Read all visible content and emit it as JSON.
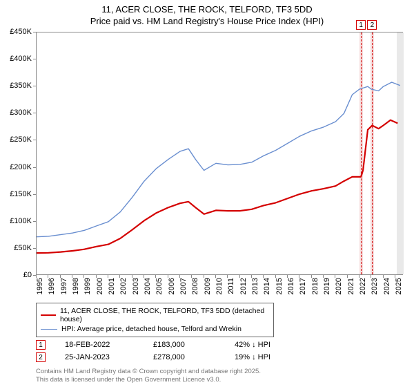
{
  "title_line1": "11, ACER CLOSE, THE ROCK, TELFORD, TF3 5DD",
  "title_line2": "Price paid vs. HM Land Registry's House Price Index (HPI)",
  "chart": {
    "type": "line",
    "background_color": "#ffffff",
    "border_color": "#888888",
    "x": {
      "min": 1995,
      "max": 2025.7,
      "ticks": [
        1995,
        1996,
        1997,
        1998,
        1999,
        2000,
        2001,
        2002,
        2003,
        2004,
        2005,
        2006,
        2007,
        2008,
        2009,
        2010,
        2011,
        2012,
        2013,
        2014,
        2015,
        2016,
        2017,
        2018,
        2019,
        2020,
        2021,
        2022,
        2023,
        2024,
        2025
      ]
    },
    "y": {
      "min": 0,
      "max": 450000,
      "ticks": [
        0,
        50000,
        100000,
        150000,
        200000,
        250000,
        300000,
        350000,
        400000,
        450000
      ],
      "tick_labels": [
        "£0",
        "£50K",
        "£100K",
        "£150K",
        "£200K",
        "£250K",
        "£300K",
        "£350K",
        "£400K",
        "£450K"
      ]
    },
    "title_fontsize": 13,
    "axis_label_fontsize": 11,
    "series": [
      {
        "name": "hpi",
        "label": "HPI: Average price, detached house, Telford and Wrekin",
        "color": "#6a8fd0",
        "line_width": 1.4,
        "points": [
          [
            1995,
            72000
          ],
          [
            1996,
            73000
          ],
          [
            1997,
            76000
          ],
          [
            1998,
            79000
          ],
          [
            1999,
            84000
          ],
          [
            2000,
            92000
          ],
          [
            2001,
            100000
          ],
          [
            2002,
            118000
          ],
          [
            2003,
            145000
          ],
          [
            2004,
            175000
          ],
          [
            2005,
            198000
          ],
          [
            2006,
            215000
          ],
          [
            2007,
            230000
          ],
          [
            2007.7,
            235000
          ],
          [
            2008.3,
            215000
          ],
          [
            2009,
            195000
          ],
          [
            2010,
            208000
          ],
          [
            2011,
            205000
          ],
          [
            2012,
            206000
          ],
          [
            2013,
            210000
          ],
          [
            2014,
            222000
          ],
          [
            2015,
            232000
          ],
          [
            2016,
            245000
          ],
          [
            2017,
            258000
          ],
          [
            2018,
            268000
          ],
          [
            2019,
            275000
          ],
          [
            2020,
            285000
          ],
          [
            2020.7,
            300000
          ],
          [
            2021.4,
            335000
          ],
          [
            2022,
            345000
          ],
          [
            2022.7,
            350000
          ],
          [
            2023,
            345000
          ],
          [
            2023.6,
            342000
          ],
          [
            2024,
            350000
          ],
          [
            2024.7,
            358000
          ],
          [
            2025.4,
            352000
          ]
        ]
      },
      {
        "name": "price_paid",
        "label": "11, ACER CLOSE, THE ROCK, TELFORD, TF3 5DD (detached house)",
        "color": "#d40000",
        "line_width": 2.2,
        "points": [
          [
            1995,
            42000
          ],
          [
            1996,
            42500
          ],
          [
            1997,
            44000
          ],
          [
            1998,
            46000
          ],
          [
            1999,
            49000
          ],
          [
            2000,
            54000
          ],
          [
            2001,
            58000
          ],
          [
            2002,
            69000
          ],
          [
            2003,
            85000
          ],
          [
            2004,
            102000
          ],
          [
            2005,
            116000
          ],
          [
            2006,
            126000
          ],
          [
            2007,
            134000
          ],
          [
            2007.7,
            137000
          ],
          [
            2008.3,
            126000
          ],
          [
            2009,
            114000
          ],
          [
            2010,
            121000
          ],
          [
            2011,
            120000
          ],
          [
            2012,
            120000
          ],
          [
            2013,
            123000
          ],
          [
            2014,
            130000
          ],
          [
            2015,
            135000
          ],
          [
            2016,
            143000
          ],
          [
            2017,
            151000
          ],
          [
            2018,
            157000
          ],
          [
            2019,
            161000
          ],
          [
            2020,
            166000
          ],
          [
            2020.7,
            175000
          ],
          [
            2021.4,
            183000
          ],
          [
            2022,
            183000
          ],
          [
            2022.13,
            183000
          ],
          [
            2022.3,
            195000
          ],
          [
            2022.7,
            270000
          ],
          [
            2023.07,
            278000
          ],
          [
            2023.6,
            272000
          ],
          [
            2024,
            278000
          ],
          [
            2024.6,
            288000
          ],
          [
            2025.2,
            282000
          ]
        ]
      }
    ],
    "event_markers": [
      {
        "num": "1",
        "x": 2022.13,
        "color": "#d40000",
        "band_color": "#f5dcdc"
      },
      {
        "num": "2",
        "x": 2023.07,
        "color": "#d40000",
        "band_color": "#f5dcdc"
      }
    ],
    "forecast_band": {
      "x_from": 2025.1,
      "x_to": 2025.7,
      "color": "#e9e9e9"
    }
  },
  "legend": {
    "border_color": "#666666",
    "fontsize": 10.5
  },
  "marker_table": {
    "rows": [
      {
        "num": "1",
        "date": "18-FEB-2022",
        "price": "£183,000",
        "delta": "42% ↓ HPI",
        "color": "#d40000"
      },
      {
        "num": "2",
        "date": "25-JAN-2023",
        "price": "£278,000",
        "delta": "19% ↓ HPI",
        "color": "#d40000"
      }
    ]
  },
  "footer": {
    "line1": "Contains HM Land Registry data © Crown copyright and database right 2025.",
    "line2": "This data is licensed under the Open Government Licence v3.0.",
    "color": "#777777"
  }
}
